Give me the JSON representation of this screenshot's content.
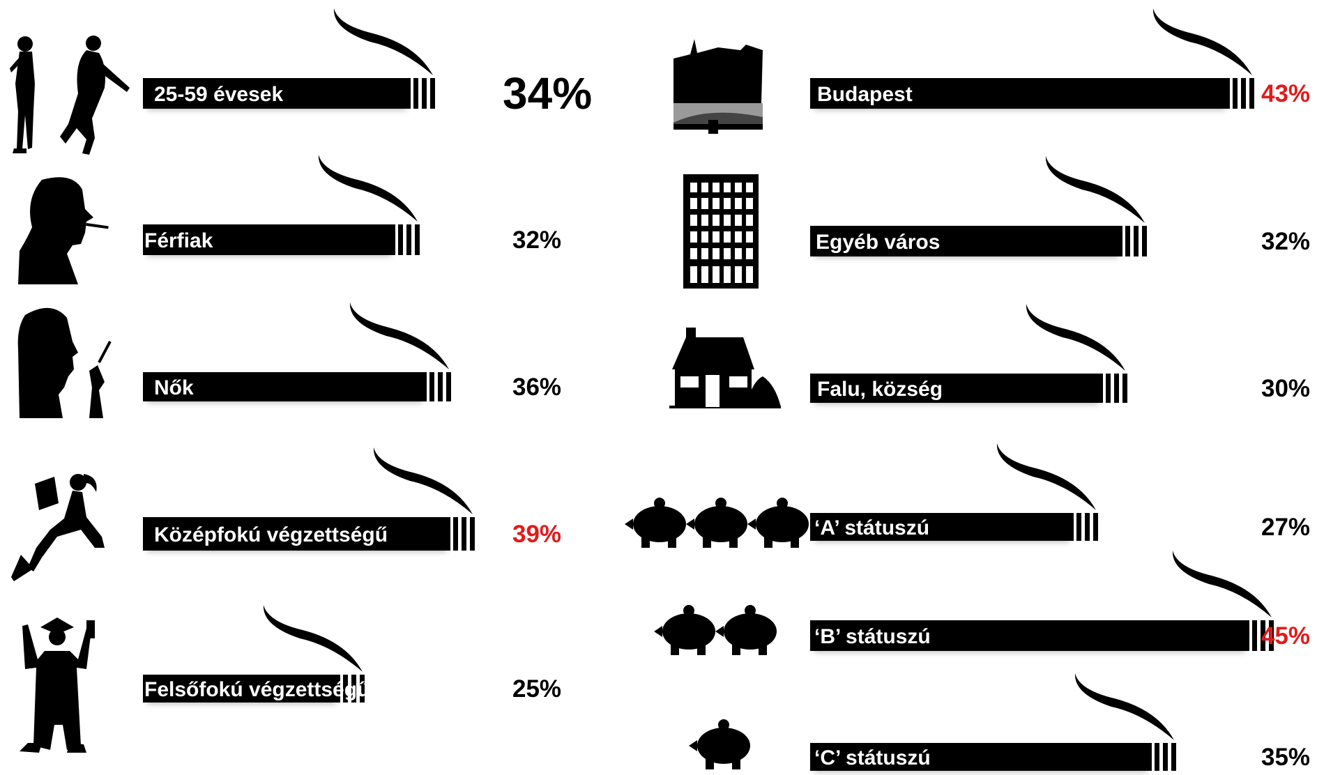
{
  "chart_data": {
    "type": "bar",
    "title": "",
    "value_unit": "%",
    "panels": [
      {
        "name": "",
        "rows": [
          {
            "category": "25-59 évesek",
            "value": 34,
            "value_label": "34%",
            "icon": "smoking-couple-icon",
            "emphasis": "large"
          },
          {
            "category": "Férfiak",
            "value": 32,
            "value_label": "32%",
            "icon": "smoking-man-icon"
          },
          {
            "category": "Nők",
            "value": 36,
            "value_label": "36%",
            "icon": "smoking-woman-icon"
          },
          {
            "category": "Középfokú végzettségű",
            "value": 39,
            "value_label": "39%",
            "icon": "reading-woman-icon",
            "highlight": "#e21a1a"
          },
          {
            "category": "Felsőfokú végzettségű",
            "value": 25,
            "value_label": "25%",
            "icon": "graduate-icon"
          }
        ]
      },
      {
        "name": "",
        "rows": [
          {
            "category": "Budapest",
            "value": 43,
            "value_label": "43%",
            "icon": "budapest-bridge-icon",
            "highlight": "#e21a1a"
          },
          {
            "category": "Egyéb város",
            "value": 32,
            "value_label": "32%",
            "icon": "apartment-building-icon"
          },
          {
            "category": "Falu, község",
            "value": 30,
            "value_label": "30%",
            "icon": "village-house-icon"
          },
          {
            "category": "‘A’ státuszú",
            "value": 27,
            "value_label": "27%",
            "icon": "three-piggy-banks-icon"
          },
          {
            "category": "‘B’ státuszú",
            "value": 45,
            "value_label": "45%",
            "icon": "two-piggy-banks-icon",
            "highlight": "#e21a1a"
          },
          {
            "category": "‘C’ státuszú",
            "value": 35,
            "value_label": "35%",
            "icon": "one-piggy-bank-icon"
          }
        ]
      }
    ],
    "colors": {
      "bar": "#000000",
      "label_text": "#ffffff",
      "value_text": "#000000",
      "highlight": "#e21a1a"
    }
  }
}
